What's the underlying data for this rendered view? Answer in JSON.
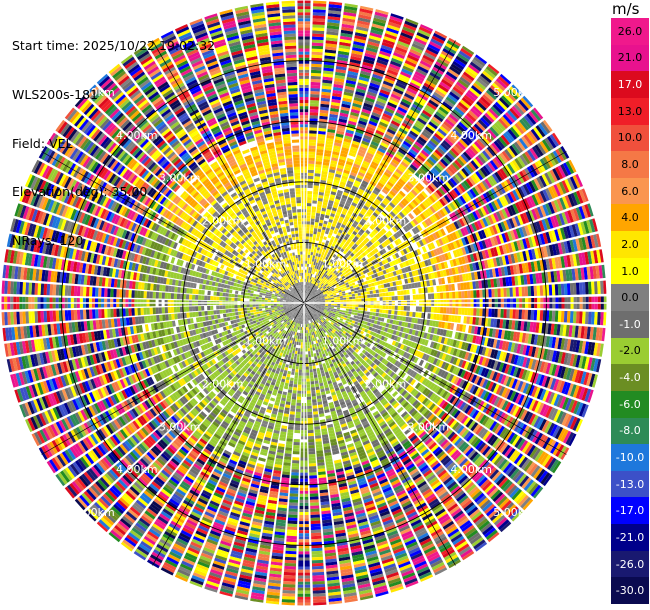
{
  "header": {
    "lines": [
      "Start time: 2025/10/22 19:02:32",
      "WLS200s-181",
      "Field: VEL",
      "Elevation(deg): 35.00",
      "NRays: 120"
    ]
  },
  "chart_data": {
    "type": "ppi",
    "field": "VEL",
    "units": "m/s",
    "n_rays": 120,
    "range_rings_km": [
      1,
      2,
      3,
      4,
      5
    ],
    "range_labels": [
      "1.00km",
      "2.00km",
      "3.00km",
      "4.00km",
      "5.00km"
    ],
    "colorbar": {
      "unit_label": "m/s",
      "levels": [
        26.0,
        21.0,
        17.0,
        13.0,
        10.0,
        8.0,
        6.0,
        4.0,
        2.0,
        1.0,
        0.0,
        -1.0,
        -2.0,
        -4.0,
        -6.0,
        -8.0,
        -10.0,
        -13.0,
        -17.0,
        -21.0,
        -26.0,
        -30.0
      ],
      "labels": [
        "26.0",
        "21.0",
        "17.0",
        "13.0",
        "10.0",
        "8.0",
        "6.0",
        "4.0",
        "2.0",
        "1.0",
        "0.0",
        "-1.0",
        "-2.0",
        "-4.0",
        "-6.0",
        "-8.0",
        "-10.0",
        "-13.0",
        "-17.0",
        "-21.0",
        "-26.0",
        "-30.0"
      ],
      "colors": [
        "#f0198c",
        "#e8128e",
        "#dc0a1e",
        "#f01e28",
        "#f0503c",
        "#f57846",
        "#fa9650",
        "#ffa500",
        "#ffe600",
        "#ffff00",
        "#808080",
        "#6e6e6e",
        "#9acd32",
        "#6b8e23",
        "#228b22",
        "#2e8b57",
        "#1e78dc",
        "#3c50c8",
        "#0000ff",
        "#00008b",
        "#191970",
        "#0a0a50"
      ]
    },
    "zones_km": [
      {
        "from": 0.0,
        "to": 1.0,
        "description": "mixed near-zero and small positive"
      },
      {
        "from": 1.0,
        "to": 2.2,
        "description": "north half positive (1 to 4 m/s), south half negative (-1 to -2 m/s)"
      },
      {
        "from": 2.2,
        "to": 2.8,
        "description": "transition, mostly 2 to 6 m/s in north-east"
      },
      {
        "from": 2.8,
        "to": 5.0,
        "description": "noise region, random velocities"
      }
    ]
  }
}
